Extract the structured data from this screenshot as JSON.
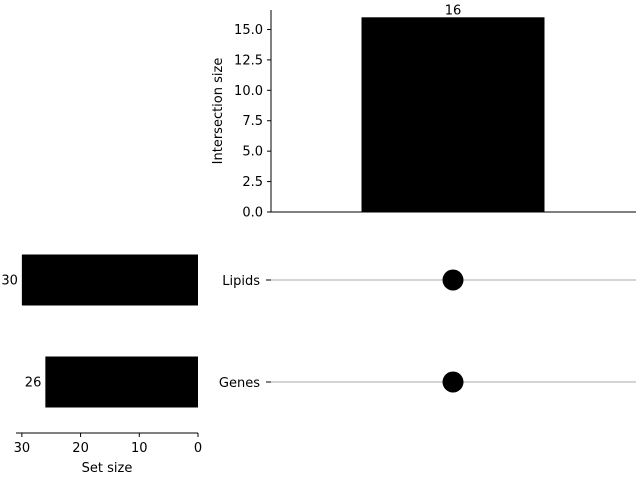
{
  "chart_data": {
    "type": "bar",
    "subtype": "upset-plot",
    "intersections": {
      "ylabel": "Intersection size",
      "ylim": [
        0,
        16.6
      ],
      "yticks": [
        0.0,
        2.5,
        5.0,
        7.5,
        10.0,
        12.5,
        15.0
      ],
      "ytick_labels": [
        "0.0",
        "2.5",
        "5.0",
        "7.5",
        "10.0",
        "12.5",
        "15.0"
      ],
      "bars": [
        {
          "value": 16,
          "label": "16",
          "members": [
            "Lipids",
            "Genes"
          ]
        }
      ]
    },
    "sets": {
      "xlabel": "Set size",
      "xlim": [
        31,
        0
      ],
      "xticks": [
        30,
        20,
        10,
        0
      ],
      "xtick_labels": [
        "30",
        "20",
        "10",
        "0"
      ],
      "items": [
        {
          "name": "Lipids",
          "size": 30,
          "label": "30"
        },
        {
          "name": "Genes",
          "size": 26,
          "label": "26"
        }
      ]
    },
    "colors": {
      "bar": "#000000",
      "dot": "#000000",
      "line": "#aaaaaa"
    }
  }
}
